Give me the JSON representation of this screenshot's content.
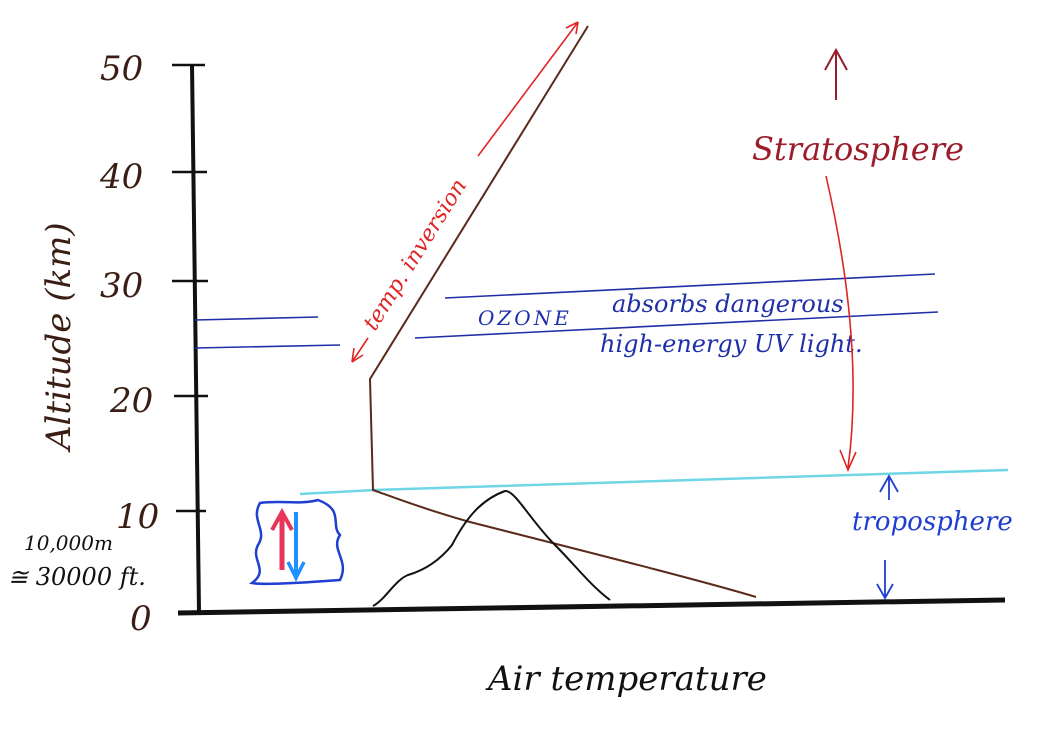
{
  "y_axis": {
    "label": "Altitude (km)",
    "ticks": [
      "0",
      "10",
      "20",
      "30",
      "40",
      "50"
    ]
  },
  "x_axis": {
    "label": "Air temperature"
  },
  "side_note": {
    "line1": "10,000m",
    "line2": "≅ 30000 ft."
  },
  "labels": {
    "temp_inversion": "temp. inversion",
    "ozone": "OZONE",
    "ozone_desc1": "absorbs dangerous",
    "ozone_desc2": "high-energy UV light.",
    "stratosphere": "Stratosphere",
    "troposphere": "troposphere"
  },
  "colors": {
    "ink_brown": "#3a1e14",
    "ink_black": "#111111",
    "ink_red": "#e02424",
    "ink_darkred": "#9b1c2a",
    "ink_blue": "#1f2fa8",
    "ink_cyan": "#6fd6e6",
    "ink_lightblue": "#1e90ff"
  }
}
